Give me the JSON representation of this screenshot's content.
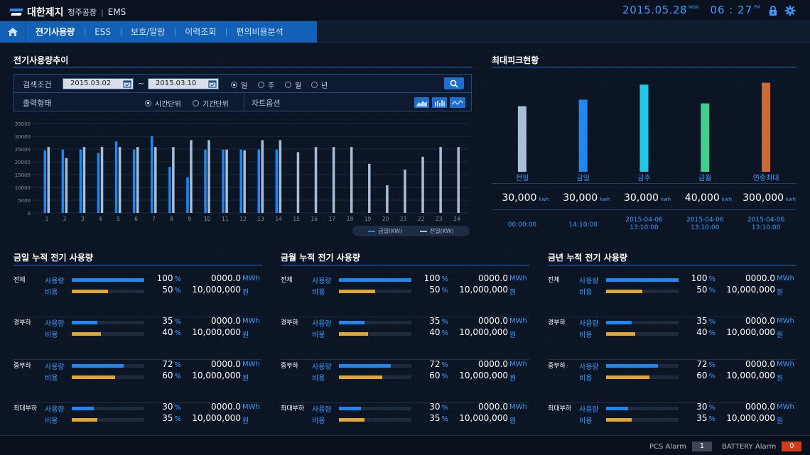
{
  "header": {
    "brand": "대한제지",
    "plant": "청주공장",
    "separator": "|",
    "app": "EMS",
    "date": "2015.05.28",
    "date_sup": "MON",
    "time": "06 : 27",
    "time_sup": "PM",
    "icons": [
      "lock-icon",
      "gear-icon"
    ],
    "accent_color": "#3a9bff"
  },
  "nav": {
    "home_icon": "home-icon",
    "items": [
      "전기사용량",
      "ESS",
      "보호/알람",
      "이력조회",
      "편의비용분석"
    ],
    "active_index": 0
  },
  "trend": {
    "title": "전기사용량추이",
    "search_label": "검색조건",
    "date_from": "2015.03.02",
    "date_to": "2015.03.10",
    "tilde": "~",
    "period_options": [
      "일",
      "주",
      "월",
      "년"
    ],
    "period_selected": "일",
    "output_label": "출력형태",
    "output_options": [
      "시간단위",
      "기간단위"
    ],
    "output_selected": "시간단위",
    "chart_option_label": "차트옵션",
    "chart_option_icons": [
      "area-chart-icon",
      "bar-chart-icon",
      "line-chart-icon"
    ],
    "search_icon": "search-icon"
  },
  "chart_data": {
    "type": "bar",
    "categories": [
      "1",
      "2",
      "3",
      "4",
      "5",
      "6",
      "7",
      "8",
      "9",
      "10",
      "11",
      "12",
      "13",
      "14",
      "15",
      "16",
      "17",
      "18",
      "19",
      "20",
      "21",
      "22",
      "23",
      "24"
    ],
    "ylim": [
      0,
      35000
    ],
    "yticks": [
      0,
      5000,
      10000,
      15000,
      20000,
      25000,
      30000,
      35000
    ],
    "series": [
      {
        "name": "금일(KW)",
        "color": "#1e88f0",
        "values": [
          24500,
          24800,
          24800,
          23500,
          28000,
          24800,
          30000,
          18000,
          14000,
          24800,
          24800,
          24800,
          24800,
          24800,
          null,
          null,
          null,
          null,
          null,
          null,
          null,
          null,
          null,
          null
        ]
      },
      {
        "name": "전일(KW)",
        "color": "#a8bdd6",
        "values": [
          25800,
          21500,
          25800,
          25800,
          25800,
          25800,
          25800,
          25800,
          28500,
          28500,
          24800,
          24500,
          28500,
          28500,
          23800,
          25800,
          25800,
          25800,
          19200,
          10800,
          17000,
          22000,
          25800,
          25800
        ]
      }
    ]
  },
  "peak": {
    "title": "최대피크현황",
    "values": [
      {
        "name": "전일",
        "value": "30,000",
        "unit": "kwh",
        "time": [
          "00:00:00"
        ],
        "color": "#a8bdd6",
        "level": 0.7
      },
      {
        "name": "금일",
        "value": "30,000",
        "unit": "kwh",
        "time": [
          "14:10:00"
        ],
        "color": "#1e88f0",
        "level": 0.77
      },
      {
        "name": "금주",
        "value": "30,000",
        "unit": "kwh",
        "time": [
          "2015-04-06",
          "13:10:00"
        ],
        "color": "#22c8e6",
        "level": 0.93
      },
      {
        "name": "금월",
        "value": "40,000",
        "unit": "kwh",
        "time": [
          "2015-04-06",
          "13:10:00"
        ],
        "color": "#3fcf8e",
        "level": 0.73
      },
      {
        "name": "연중최대",
        "value": "300,000",
        "unit": "kwh",
        "time": [
          "2015-04-06",
          "13:10:00"
        ],
        "color": "#cc6a38",
        "level": 0.95
      }
    ]
  },
  "usage_sections": [
    {
      "title": "금일 누적 전기 사용량"
    },
    {
      "title": "금월 누적 전기 사용량"
    },
    {
      "title": "금년 누적 전기 사용량"
    }
  ],
  "usage_rows": [
    {
      "group": "전체",
      "usage_label": "사용량",
      "cost_label": "비용",
      "usage_pct": 100,
      "cost_pct": 50,
      "usage_amount": "0000.0",
      "usage_unit": "MWh",
      "cost_amount": "10,000,000",
      "cost_unit": "원"
    },
    {
      "group": "경부하",
      "usage_label": "사용량",
      "cost_label": "비용",
      "usage_pct": 35,
      "cost_pct": 40,
      "usage_amount": "0000.0",
      "usage_unit": "MWh",
      "cost_amount": "10,000,000",
      "cost_unit": "원"
    },
    {
      "group": "중부하",
      "usage_label": "사용량",
      "cost_label": "비용",
      "usage_pct": 72,
      "cost_pct": 60,
      "usage_amount": "0000.0",
      "usage_unit": "MWh",
      "cost_amount": "10,000,000",
      "cost_unit": "원"
    },
    {
      "group": "최대부하",
      "usage_label": "사용량",
      "cost_label": "비용",
      "usage_pct": 30,
      "cost_pct": 35,
      "usage_amount": "0000.0",
      "usage_unit": "MWh",
      "cost_amount": "10,000,000",
      "cost_unit": "원"
    }
  ],
  "usage_colors": {
    "usage": "#1e88f0",
    "cost": "#e0a830"
  },
  "pct_unit": "%",
  "status": {
    "pcs_label": "PCS Alarm",
    "pcs_count": "1",
    "battery_label": "BATTERY Alarm",
    "battery_count": "0",
    "battery_color": "#d33a1c"
  }
}
